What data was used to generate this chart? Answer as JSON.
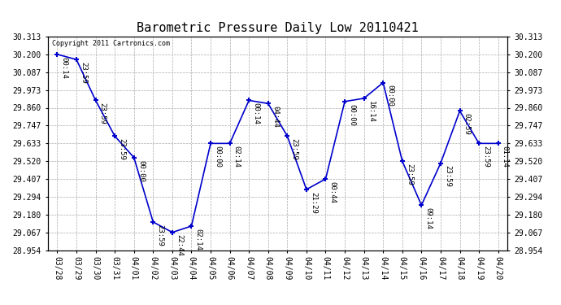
{
  "title": "Barometric Pressure Daily Low 20110421",
  "copyright": "Copyright 2011 Cartronics.com",
  "x_labels": [
    "03/28",
    "03/29",
    "03/30",
    "03/31",
    "04/01",
    "04/02",
    "04/03",
    "04/04",
    "04/05",
    "04/06",
    "04/07",
    "04/08",
    "04/09",
    "04/10",
    "04/11",
    "04/12",
    "04/13",
    "04/14",
    "04/15",
    "04/16",
    "04/17",
    "04/18",
    "04/19",
    "04/20"
  ],
  "y_values": [
    30.2,
    30.167,
    29.907,
    29.68,
    29.543,
    29.133,
    29.067,
    29.107,
    29.633,
    29.633,
    29.907,
    29.887,
    29.68,
    29.34,
    29.407,
    29.9,
    29.92,
    30.02,
    29.52,
    29.24,
    29.507,
    29.84,
    29.633,
    29.633
  ],
  "point_labels": [
    "00:14",
    "23:59",
    "23:59",
    "23:59",
    "00:00",
    "23:59",
    "22:44",
    "02:14",
    "00:00",
    "02:14",
    "00:14",
    "04:44",
    "23:59",
    "21:29",
    "00:44",
    "00:00",
    "16:14",
    "00:00",
    "23:59",
    "09:14",
    "23:59",
    "02:59",
    "23:59",
    "01:14"
  ],
  "y_min": 28.954,
  "y_max": 30.313,
  "y_ticks": [
    28.954,
    29.067,
    29.18,
    29.294,
    29.407,
    29.52,
    29.633,
    29.747,
    29.86,
    29.973,
    30.087,
    30.2,
    30.313
  ],
  "line_color": "#0000cc",
  "marker_color": "#0000cc",
  "bg_color": "#ffffff",
  "grid_color": "#aaaaaa",
  "title_fontsize": 11,
  "label_fontsize": 6.5,
  "tick_fontsize": 7
}
